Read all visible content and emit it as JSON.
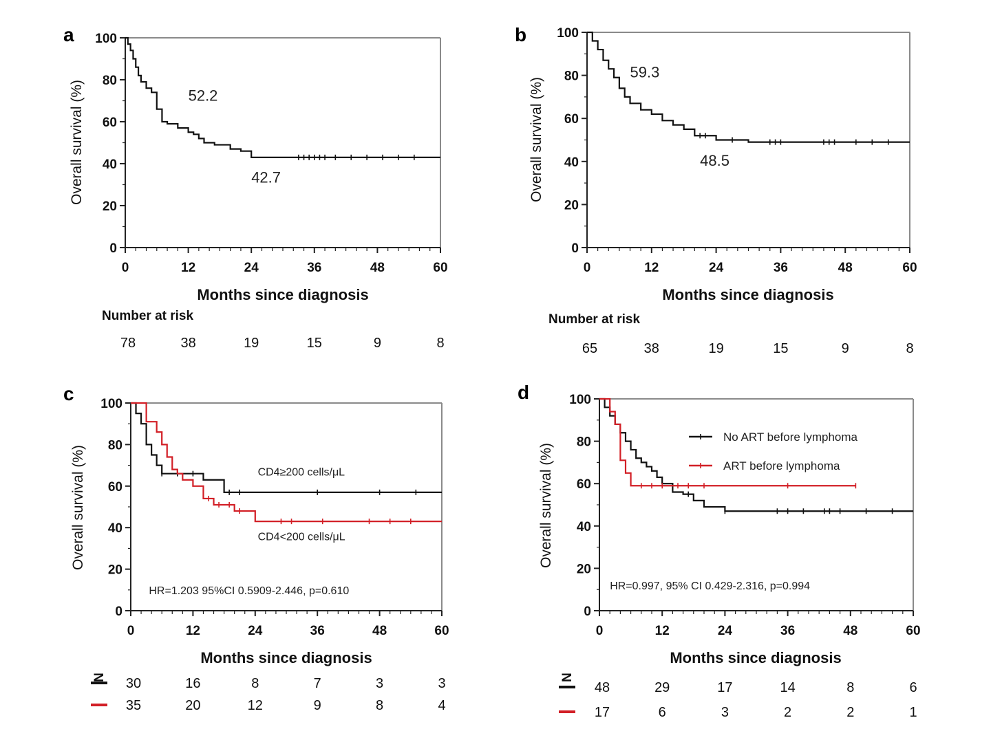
{
  "colors": {
    "black": "#111111",
    "red": "#d21f26",
    "frame": "#8a8a8a"
  },
  "chart_data": [
    {
      "panel": "a",
      "type": "line",
      "xlabel": "Months since diagnosis",
      "ylabel": "Overall survival (%)",
      "xlim": [
        0,
        60
      ],
      "ylim": [
        0,
        100
      ],
      "xticks": [
        "0",
        "12",
        "24",
        "36",
        "48",
        "60"
      ],
      "yticks": [
        "0",
        "20",
        "40",
        "60",
        "80",
        "100"
      ],
      "annotations": [
        {
          "text": "52.2",
          "x": 12,
          "y": 70
        },
        {
          "text": "42.7",
          "x": 24,
          "y": 31
        }
      ],
      "series": [
        {
          "color": "#111111",
          "x": [
            0,
            0.5,
            1,
            1.5,
            2,
            2.5,
            3,
            4,
            5,
            6,
            7,
            8,
            10,
            12,
            13,
            14,
            15,
            17,
            20,
            22,
            24,
            60
          ],
          "y": [
            100,
            97,
            94,
            90,
            86,
            82,
            79,
            76,
            74,
            66,
            60,
            59,
            57,
            55,
            54,
            52,
            50,
            49,
            47,
            46,
            43,
            43
          ],
          "censor_x": [
            33,
            34,
            35,
            36,
            37,
            38,
            40,
            43,
            46,
            49,
            52,
            55
          ]
        }
      ],
      "risk_table": {
        "title": "Number at risk",
        "rows": [
          {
            "values": [
              "78",
              "38",
              "19",
              "15",
              "9",
              "8"
            ]
          }
        ]
      }
    },
    {
      "panel": "b",
      "type": "line",
      "xlabel": "Months since diagnosis",
      "ylabel": "Overall survival (%)",
      "xlim": [
        0,
        60
      ],
      "ylim": [
        0,
        100
      ],
      "xticks": [
        "0",
        "12",
        "24",
        "36",
        "48",
        "60"
      ],
      "yticks": [
        "0",
        "20",
        "40",
        "60",
        "80",
        "100"
      ],
      "annotations": [
        {
          "text": "59.3",
          "x": 8,
          "y": 79
        },
        {
          "text": "48.5",
          "x": 21,
          "y": 38
        }
      ],
      "series": [
        {
          "color": "#111111",
          "x": [
            0,
            1,
            2,
            3,
            4,
            5,
            6,
            7,
            8,
            10,
            12,
            14,
            16,
            18,
            20,
            24,
            30,
            60
          ],
          "y": [
            100,
            96,
            92,
            87,
            83,
            79,
            74,
            70,
            67,
            64,
            62,
            59,
            57,
            55,
            52,
            50,
            49,
            49
          ],
          "censor_x": [
            21,
            22,
            27,
            34,
            35,
            36,
            44,
            45,
            46,
            50,
            53,
            56
          ]
        }
      ],
      "risk_table": {
        "title": "Number at risk",
        "rows": [
          {
            "values": [
              "65",
              "38",
              "19",
              "15",
              "9",
              "8"
            ]
          }
        ]
      }
    },
    {
      "panel": "c",
      "type": "line",
      "xlabel": "Months since diagnosis",
      "ylabel": "Overall survival (%)",
      "xlim": [
        0,
        60
      ],
      "ylim": [
        0,
        100
      ],
      "xticks": [
        "0",
        "12",
        "24",
        "36",
        "48",
        "60"
      ],
      "yticks": [
        "0",
        "20",
        "40",
        "60",
        "80",
        "100"
      ],
      "annotations": [
        {
          "text": "CD4≥200 cells/μL",
          "x": 24.5,
          "y": 65
        },
        {
          "text": "CD4<200 cells/μL",
          "x": 24.5,
          "y": 34
        },
        {
          "text": "HR=1.203 95%CI 0.5909-2.446, p=0.610",
          "x": 3.5,
          "y": 8
        }
      ],
      "series": [
        {
          "color": "#111111",
          "x": [
            0,
            1,
            2,
            3,
            4,
            5,
            6,
            8,
            10,
            12,
            14,
            16,
            18,
            20,
            24,
            60
          ],
          "y": [
            100,
            95,
            90,
            80,
            75,
            70,
            66,
            66,
            66,
            66,
            63,
            63,
            57,
            57,
            57,
            57
          ],
          "censor_x": [
            6,
            9,
            12,
            19,
            21,
            36,
            48,
            55
          ]
        },
        {
          "color": "#d21f26",
          "x": [
            0,
            2,
            3,
            5,
            6,
            7,
            8,
            9,
            10,
            12,
            14,
            16,
            18,
            20,
            24,
            60
          ],
          "y": [
            100,
            100,
            91,
            86,
            80,
            74,
            68,
            66,
            63,
            60,
            54,
            51,
            51,
            48,
            43,
            43
          ],
          "censor_x": [
            15,
            17,
            19,
            21,
            29,
            31,
            37,
            46,
            50,
            54
          ]
        }
      ],
      "risk_table": {
        "title": "",
        "rows": [
          {
            "marker_color": "#111111",
            "values": [
              "30",
              "16",
              "8",
              "7",
              "3",
              "3"
            ]
          },
          {
            "marker_color": "#d21f26",
            "values": [
              "35",
              "20",
              "12",
              "9",
              "8",
              "4"
            ]
          }
        ]
      }
    },
    {
      "panel": "d",
      "type": "line",
      "xlabel": "Months since diagnosis",
      "ylabel": "Overall survival (%)",
      "xlim": [
        0,
        60
      ],
      "ylim": [
        0,
        100
      ],
      "xticks": [
        "0",
        "12",
        "24",
        "36",
        "48",
        "60"
      ],
      "yticks": [
        "0",
        "20",
        "40",
        "60",
        "80",
        "100"
      ],
      "legend": [
        {
          "label": "No ART before lymphoma",
          "color": "#111111"
        },
        {
          "label": "ART before lymphoma",
          "color": "#d21f26"
        }
      ],
      "legend_position": "top-right",
      "annotations": [
        {
          "text": "HR=0.997, 95% CI 0.429-2.316, p=0.994",
          "x": 2,
          "y": 10
        }
      ],
      "series": [
        {
          "color": "#111111",
          "x": [
            0,
            1,
            2,
            3,
            4,
            5,
            6,
            7,
            8,
            9,
            10,
            11,
            12,
            14,
            16,
            18,
            20,
            24,
            60
          ],
          "y": [
            100,
            96,
            92,
            88,
            84,
            80,
            76,
            72,
            70,
            68,
            66,
            63,
            60,
            56,
            55,
            52,
            49,
            47,
            47
          ],
          "censor_x": [
            17,
            24,
            34,
            36,
            39,
            43,
            44,
            46,
            51,
            56
          ]
        },
        {
          "color": "#d21f26",
          "x": [
            0,
            1,
            2,
            3,
            4,
            5,
            6,
            49
          ],
          "y": [
            100,
            100,
            94,
            88,
            71,
            65,
            59,
            59
          ],
          "censor_x": [
            8,
            10,
            12,
            15,
            17,
            20,
            36,
            49
          ]
        }
      ],
      "risk_table": {
        "title": "",
        "rows": [
          {
            "marker_color": "#111111",
            "values": [
              "48",
              "29",
              "17",
              "14",
              "8",
              "6"
            ]
          },
          {
            "marker_color": "#d21f26",
            "values": [
              "17",
              "6",
              "3",
              "2",
              "2",
              "1"
            ]
          }
        ]
      }
    }
  ]
}
